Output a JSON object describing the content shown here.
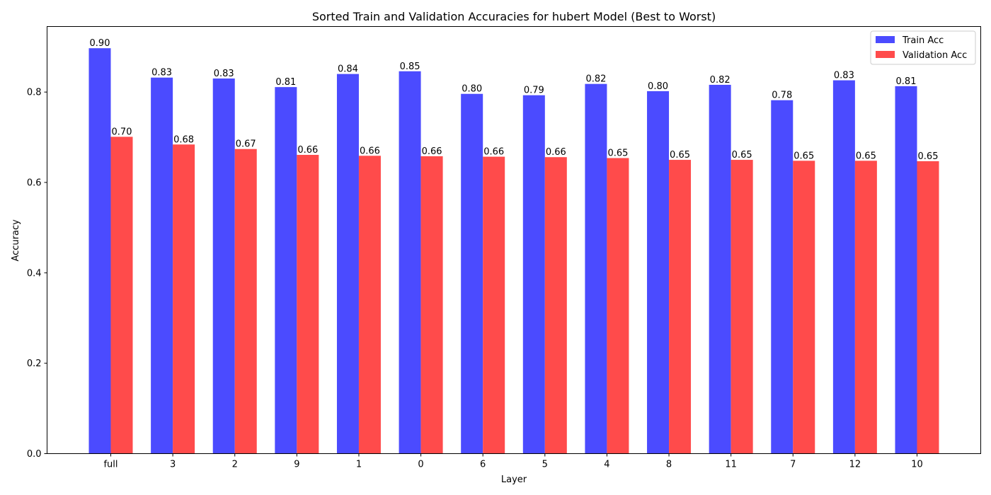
{
  "chart_data": {
    "type": "bar",
    "title": "Sorted Train and Validation Accuracies for hubert Model (Best to Worst)",
    "xlabel": "Layer",
    "ylabel": "Accuracy",
    "ylim": [
      0,
      0.945
    ],
    "yticks": [
      0.0,
      0.2,
      0.4,
      0.6,
      0.8
    ],
    "ytick_labels": [
      "0.0",
      "0.2",
      "0.4",
      "0.6",
      "0.8"
    ],
    "categories": [
      "full",
      "3",
      "2",
      "9",
      "1",
      "0",
      "6",
      "5",
      "4",
      "8",
      "11",
      "7",
      "12",
      "10"
    ],
    "series": [
      {
        "name": "Train Acc",
        "color": "#4b4bff",
        "values": [
          0.897,
          0.832,
          0.83,
          0.811,
          0.84,
          0.846,
          0.796,
          0.793,
          0.818,
          0.802,
          0.816,
          0.782,
          0.826,
          0.813
        ],
        "labels": [
          "0.90",
          "0.83",
          "0.83",
          "0.81",
          "0.84",
          "0.85",
          "0.80",
          "0.79",
          "0.82",
          "0.80",
          "0.82",
          "0.78",
          "0.83",
          "0.81"
        ]
      },
      {
        "name": "Validation Acc",
        "color": "#ff4b4b",
        "values": [
          0.701,
          0.684,
          0.674,
          0.661,
          0.659,
          0.658,
          0.657,
          0.656,
          0.654,
          0.65,
          0.65,
          0.648,
          0.648,
          0.647
        ],
        "labels": [
          "0.70",
          "0.68",
          "0.67",
          "0.66",
          "0.66",
          "0.66",
          "0.66",
          "0.66",
          "0.65",
          "0.65",
          "0.65",
          "0.65",
          "0.65",
          "0.65"
        ]
      }
    ],
    "legend": "top-right",
    "grid": false
  }
}
